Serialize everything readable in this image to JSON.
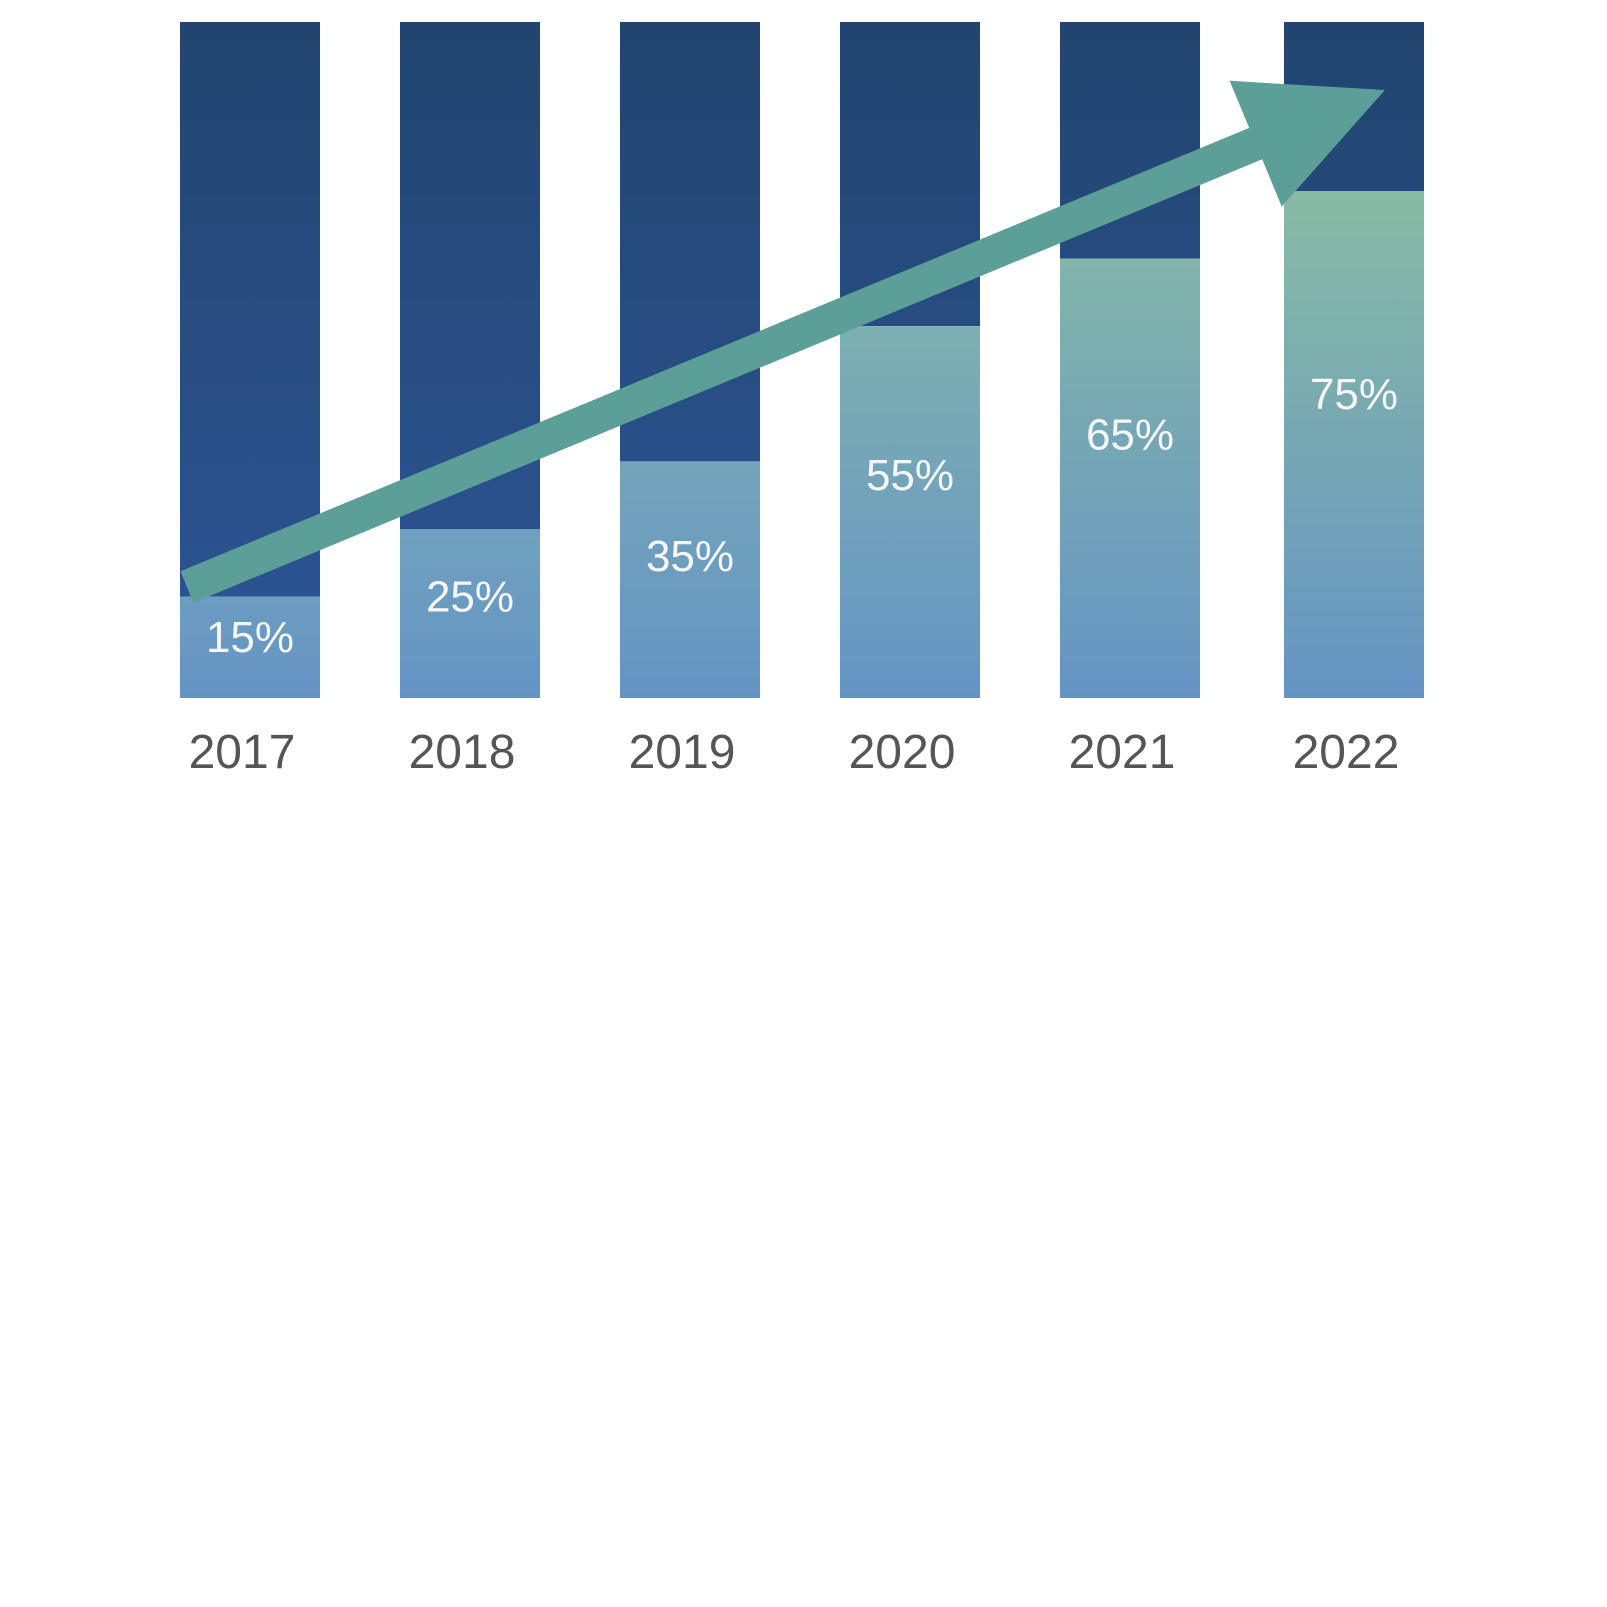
{
  "chart_data": {
    "type": "bar",
    "stacked": true,
    "categories": [
      "2017",
      "2018",
      "2019",
      "2020",
      "2021",
      "2022"
    ],
    "series": [
      {
        "values": [
          15,
          25,
          35,
          55,
          65,
          75
        ],
        "labels": [
          "15%",
          "25%",
          "35%",
          "55%",
          "65%",
          "75%"
        ]
      },
      {
        "values": [
          85,
          75,
          65,
          45,
          35,
          25
        ]
      }
    ],
    "ylim": [
      0,
      100
    ],
    "grid": false,
    "legend": "none",
    "annotations": [
      {
        "type": "trend-arrow",
        "from_category": "2017",
        "to_category": "2022",
        "direction": "up"
      }
    ],
    "colors": {
      "remainder_top": "#21456f",
      "remainder_bottom": "#2d5597",
      "share_low_top": "#7aabbc",
      "share_high_top": "#88bba4",
      "share_bottom": "#6594c4",
      "arrow": "#5b9f98",
      "tick_text": "#555555",
      "value_text": "#f4f6f8"
    }
  }
}
